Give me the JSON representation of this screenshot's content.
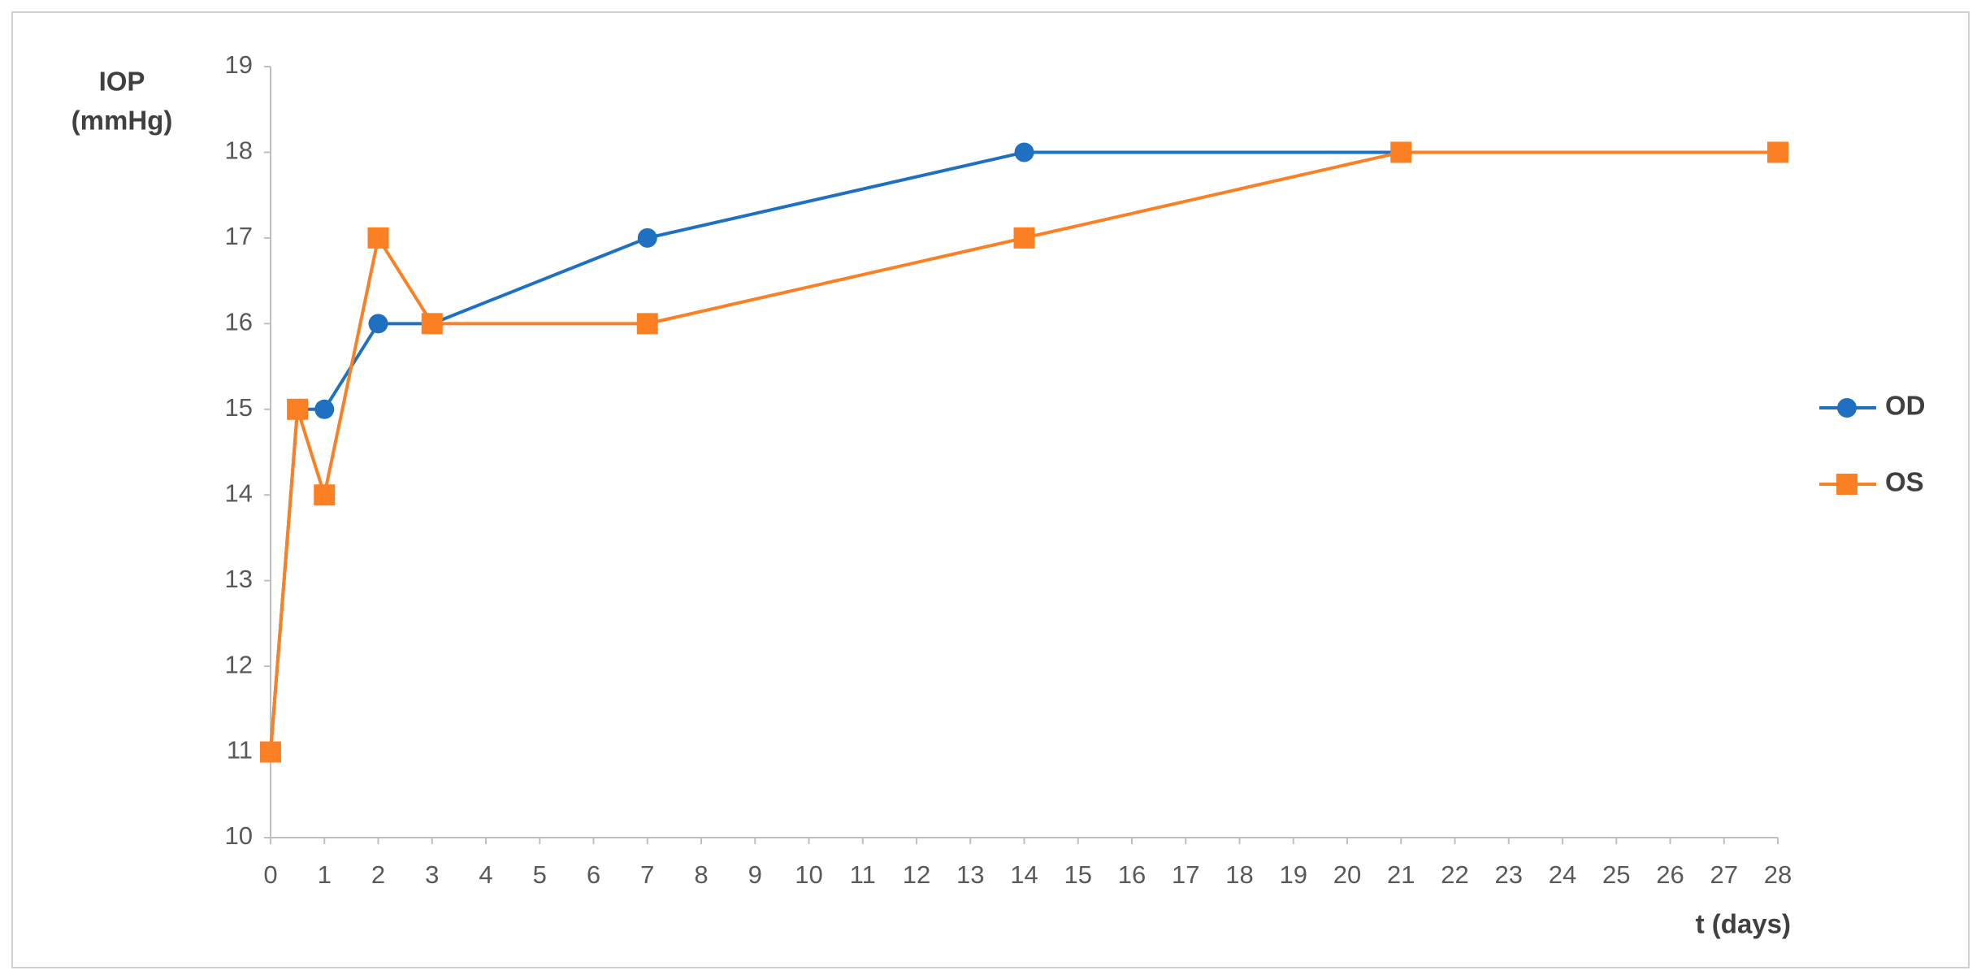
{
  "chart_data": {
    "type": "line",
    "y_label": [
      "IOP",
      "(mmHg)"
    ],
    "x_label": "t (days)",
    "x": [
      0,
      0.5,
      1,
      2,
      3,
      7,
      14,
      21,
      28
    ],
    "series": [
      {
        "name": "OD",
        "color": "#1f70c1",
        "marker": "circle",
        "values": [
          11,
          15,
          15,
          16,
          16,
          17,
          18,
          18,
          18
        ]
      },
      {
        "name": "OS",
        "color": "#fb7f23",
        "marker": "square",
        "values": [
          11,
          15,
          14,
          17,
          16,
          16,
          17,
          18,
          18
        ]
      }
    ],
    "xlim": [
      0,
      28
    ],
    "xticks": [
      0,
      1,
      2,
      3,
      4,
      5,
      6,
      7,
      8,
      9,
      10,
      11,
      12,
      13,
      14,
      15,
      16,
      17,
      18,
      19,
      20,
      21,
      22,
      23,
      24,
      25,
      26,
      27,
      28
    ],
    "ylim": [
      10,
      19
    ],
    "yticks": [
      10,
      11,
      12,
      13,
      14,
      15,
      16,
      17,
      18,
      19
    ],
    "grid": false,
    "legend": "right"
  }
}
